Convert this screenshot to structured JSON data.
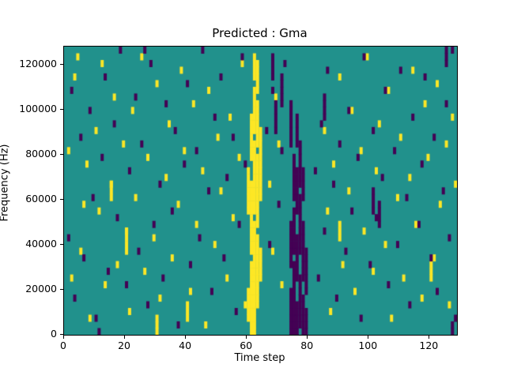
{
  "chart_data": {
    "type": "heatmap",
    "title": "Predicted : Gma",
    "xlabel": "Time step",
    "ylabel": "Frequency (Hz)",
    "x_ticks": [
      0,
      20,
      40,
      60,
      80,
      100,
      120
    ],
    "y_ticks": [
      0,
      20000,
      40000,
      60000,
      80000,
      100000,
      120000
    ],
    "xlim": [
      0,
      129
    ],
    "ylim": [
      0,
      128000
    ],
    "grid_cols": 129,
    "grid_rows": 43,
    "legend": "none",
    "grid": "off",
    "colors": {
      "background_mid": "#21918c",
      "high_yellow": "#fde725",
      "low_purple": "#440154",
      "spine": "#000000"
    },
    "yellow_runs": [
      [
        61,
        0,
        10
      ],
      [
        62,
        0,
        16
      ],
      [
        63,
        4,
        14
      ],
      [
        60,
        2,
        6
      ],
      [
        64,
        8,
        12
      ],
      [
        61,
        12,
        22
      ],
      [
        63,
        16,
        26
      ],
      [
        62,
        18,
        28
      ],
      [
        64,
        20,
        30
      ],
      [
        61,
        26,
        32
      ],
      [
        63,
        28,
        34
      ],
      [
        62,
        30,
        36
      ],
      [
        60,
        18,
        24
      ],
      [
        63,
        36,
        40
      ],
      [
        62,
        38,
        41
      ],
      [
        20,
        12,
        15
      ],
      [
        15,
        20,
        22
      ],
      [
        90,
        14,
        16
      ],
      [
        120,
        8,
        10
      ],
      [
        40,
        2,
        4
      ],
      [
        30,
        0,
        2
      ]
    ],
    "yellow_cells": [
      [
        1,
        27
      ],
      [
        2,
        8
      ],
      [
        3,
        38
      ],
      [
        4,
        41
      ],
      [
        5,
        12
      ],
      [
        6,
        19
      ],
      [
        7,
        25
      ],
      [
        8,
        2
      ],
      [
        10,
        30
      ],
      [
        11,
        18
      ],
      [
        12,
        40
      ],
      [
        13,
        7
      ],
      [
        15,
        22
      ],
      [
        16,
        35
      ],
      [
        17,
        10
      ],
      [
        19,
        28
      ],
      [
        20,
        15
      ],
      [
        21,
        3
      ],
      [
        22,
        33
      ],
      [
        23,
        20
      ],
      [
        25,
        41
      ],
      [
        26,
        9
      ],
      [
        27,
        26
      ],
      [
        29,
        14
      ],
      [
        30,
        37
      ],
      [
        31,
        5
      ],
      [
        33,
        23
      ],
      [
        34,
        31
      ],
      [
        35,
        11
      ],
      [
        37,
        19
      ],
      [
        38,
        39
      ],
      [
        39,
        27
      ],
      [
        41,
        6
      ],
      [
        42,
        34
      ],
      [
        43,
        16
      ],
      [
        45,
        24
      ],
      [
        46,
        1
      ],
      [
        47,
        36
      ],
      [
        49,
        13
      ],
      [
        50,
        29
      ],
      [
        51,
        21
      ],
      [
        53,
        8
      ],
      [
        54,
        32
      ],
      [
        55,
        17
      ],
      [
        57,
        26
      ],
      [
        58,
        40
      ],
      [
        59,
        4
      ],
      [
        67,
        22
      ],
      [
        68,
        12
      ],
      [
        69,
        35
      ],
      [
        70,
        28
      ],
      [
        71,
        7
      ],
      [
        85,
        30
      ],
      [
        86,
        18
      ],
      [
        87,
        3
      ],
      [
        88,
        25
      ],
      [
        90,
        38
      ],
      [
        91,
        10
      ],
      [
        93,
        21
      ],
      [
        94,
        33
      ],
      [
        95,
        6
      ],
      [
        97,
        27
      ],
      [
        98,
        15
      ],
      [
        99,
        41
      ],
      [
        101,
        9
      ],
      [
        102,
        24
      ],
      [
        103,
        31
      ],
      [
        105,
        13
      ],
      [
        106,
        36
      ],
      [
        107,
        2
      ],
      [
        109,
        20
      ],
      [
        110,
        29
      ],
      [
        111,
        8
      ],
      [
        113,
        23
      ],
      [
        114,
        39
      ],
      [
        115,
        16
      ],
      [
        117,
        5
      ],
      [
        118,
        34
      ],
      [
        119,
        26
      ],
      [
        121,
        11
      ],
      [
        122,
        37
      ],
      [
        123,
        19
      ],
      [
        125,
        28
      ],
      [
        126,
        4
      ],
      [
        127,
        32
      ],
      [
        128,
        22
      ]
    ],
    "purple_runs": [
      [
        74,
        0,
        6
      ],
      [
        75,
        0,
        10
      ],
      [
        76,
        0,
        4
      ],
      [
        77,
        1,
        8
      ],
      [
        78,
        0,
        5
      ],
      [
        79,
        0,
        3
      ],
      [
        74,
        10,
        16
      ],
      [
        75,
        12,
        18
      ],
      [
        76,
        8,
        14
      ],
      [
        77,
        12,
        20
      ],
      [
        78,
        8,
        16
      ],
      [
        79,
        6,
        12
      ],
      [
        75,
        20,
        26
      ],
      [
        76,
        18,
        24
      ],
      [
        77,
        22,
        28
      ],
      [
        78,
        20,
        24
      ],
      [
        74,
        28,
        34
      ],
      [
        76,
        28,
        32
      ],
      [
        69,
        30,
        34
      ],
      [
        71,
        34,
        38
      ],
      [
        68,
        38,
        41
      ],
      [
        125,
        40,
        42
      ],
      [
        127,
        0,
        1
      ],
      [
        101,
        18,
        21
      ],
      [
        103,
        16,
        19
      ],
      [
        85,
        32,
        35
      ]
    ],
    "purple_cells": [
      [
        1,
        14
      ],
      [
        2,
        36
      ],
      [
        3,
        5
      ],
      [
        5,
        29
      ],
      [
        6,
        11
      ],
      [
        8,
        33
      ],
      [
        9,
        20
      ],
      [
        10,
        2
      ],
      [
        11,
        0
      ],
      [
        12,
        26
      ],
      [
        13,
        38
      ],
      [
        14,
        9
      ],
      [
        16,
        31
      ],
      [
        17,
        17
      ],
      [
        18,
        42
      ],
      [
        20,
        7
      ],
      [
        21,
        24
      ],
      [
        23,
        35
      ],
      [
        24,
        12
      ],
      [
        25,
        28
      ],
      [
        26,
        42
      ],
      [
        27,
        4
      ],
      [
        28,
        40
      ],
      [
        29,
        16
      ],
      [
        31,
        22
      ],
      [
        32,
        8
      ],
      [
        33,
        34
      ],
      [
        35,
        18
      ],
      [
        36,
        30
      ],
      [
        37,
        1
      ],
      [
        39,
        25
      ],
      [
        40,
        37
      ],
      [
        41,
        10
      ],
      [
        43,
        27
      ],
      [
        44,
        14
      ],
      [
        45,
        42
      ],
      [
        47,
        21
      ],
      [
        48,
        6
      ],
      [
        49,
        32
      ],
      [
        51,
        38
      ],
      [
        52,
        11
      ],
      [
        53,
        23
      ],
      [
        55,
        29
      ],
      [
        56,
        3
      ],
      [
        57,
        16
      ],
      [
        58,
        41
      ],
      [
        59,
        25
      ],
      [
        66,
        30
      ],
      [
        67,
        13
      ],
      [
        68,
        36
      ],
      [
        70,
        19
      ],
      [
        71,
        27
      ],
      [
        72,
        40
      ],
      [
        82,
        24
      ],
      [
        83,
        8
      ],
      [
        84,
        31
      ],
      [
        85,
        15
      ],
      [
        86,
        39
      ],
      [
        88,
        22
      ],
      [
        89,
        5
      ],
      [
        90,
        28
      ],
      [
        92,
        12
      ],
      [
        93,
        33
      ],
      [
        94,
        18
      ],
      [
        96,
        26
      ],
      [
        97,
        2
      ],
      [
        98,
        41
      ],
      [
        100,
        10
      ],
      [
        101,
        30
      ],
      [
        102,
        17
      ],
      [
        104,
        23
      ],
      [
        105,
        36
      ],
      [
        106,
        7
      ],
      [
        108,
        27
      ],
      [
        109,
        13
      ],
      [
        110,
        39
      ],
      [
        112,
        20
      ],
      [
        113,
        4
      ],
      [
        114,
        32
      ],
      [
        116,
        16
      ],
      [
        117,
        25
      ],
      [
        118,
        38
      ],
      [
        120,
        11
      ],
      [
        121,
        29
      ],
      [
        122,
        6
      ],
      [
        124,
        21
      ],
      [
        125,
        34
      ],
      [
        126,
        14
      ],
      [
        127,
        42
      ],
      [
        128,
        2
      ]
    ]
  }
}
